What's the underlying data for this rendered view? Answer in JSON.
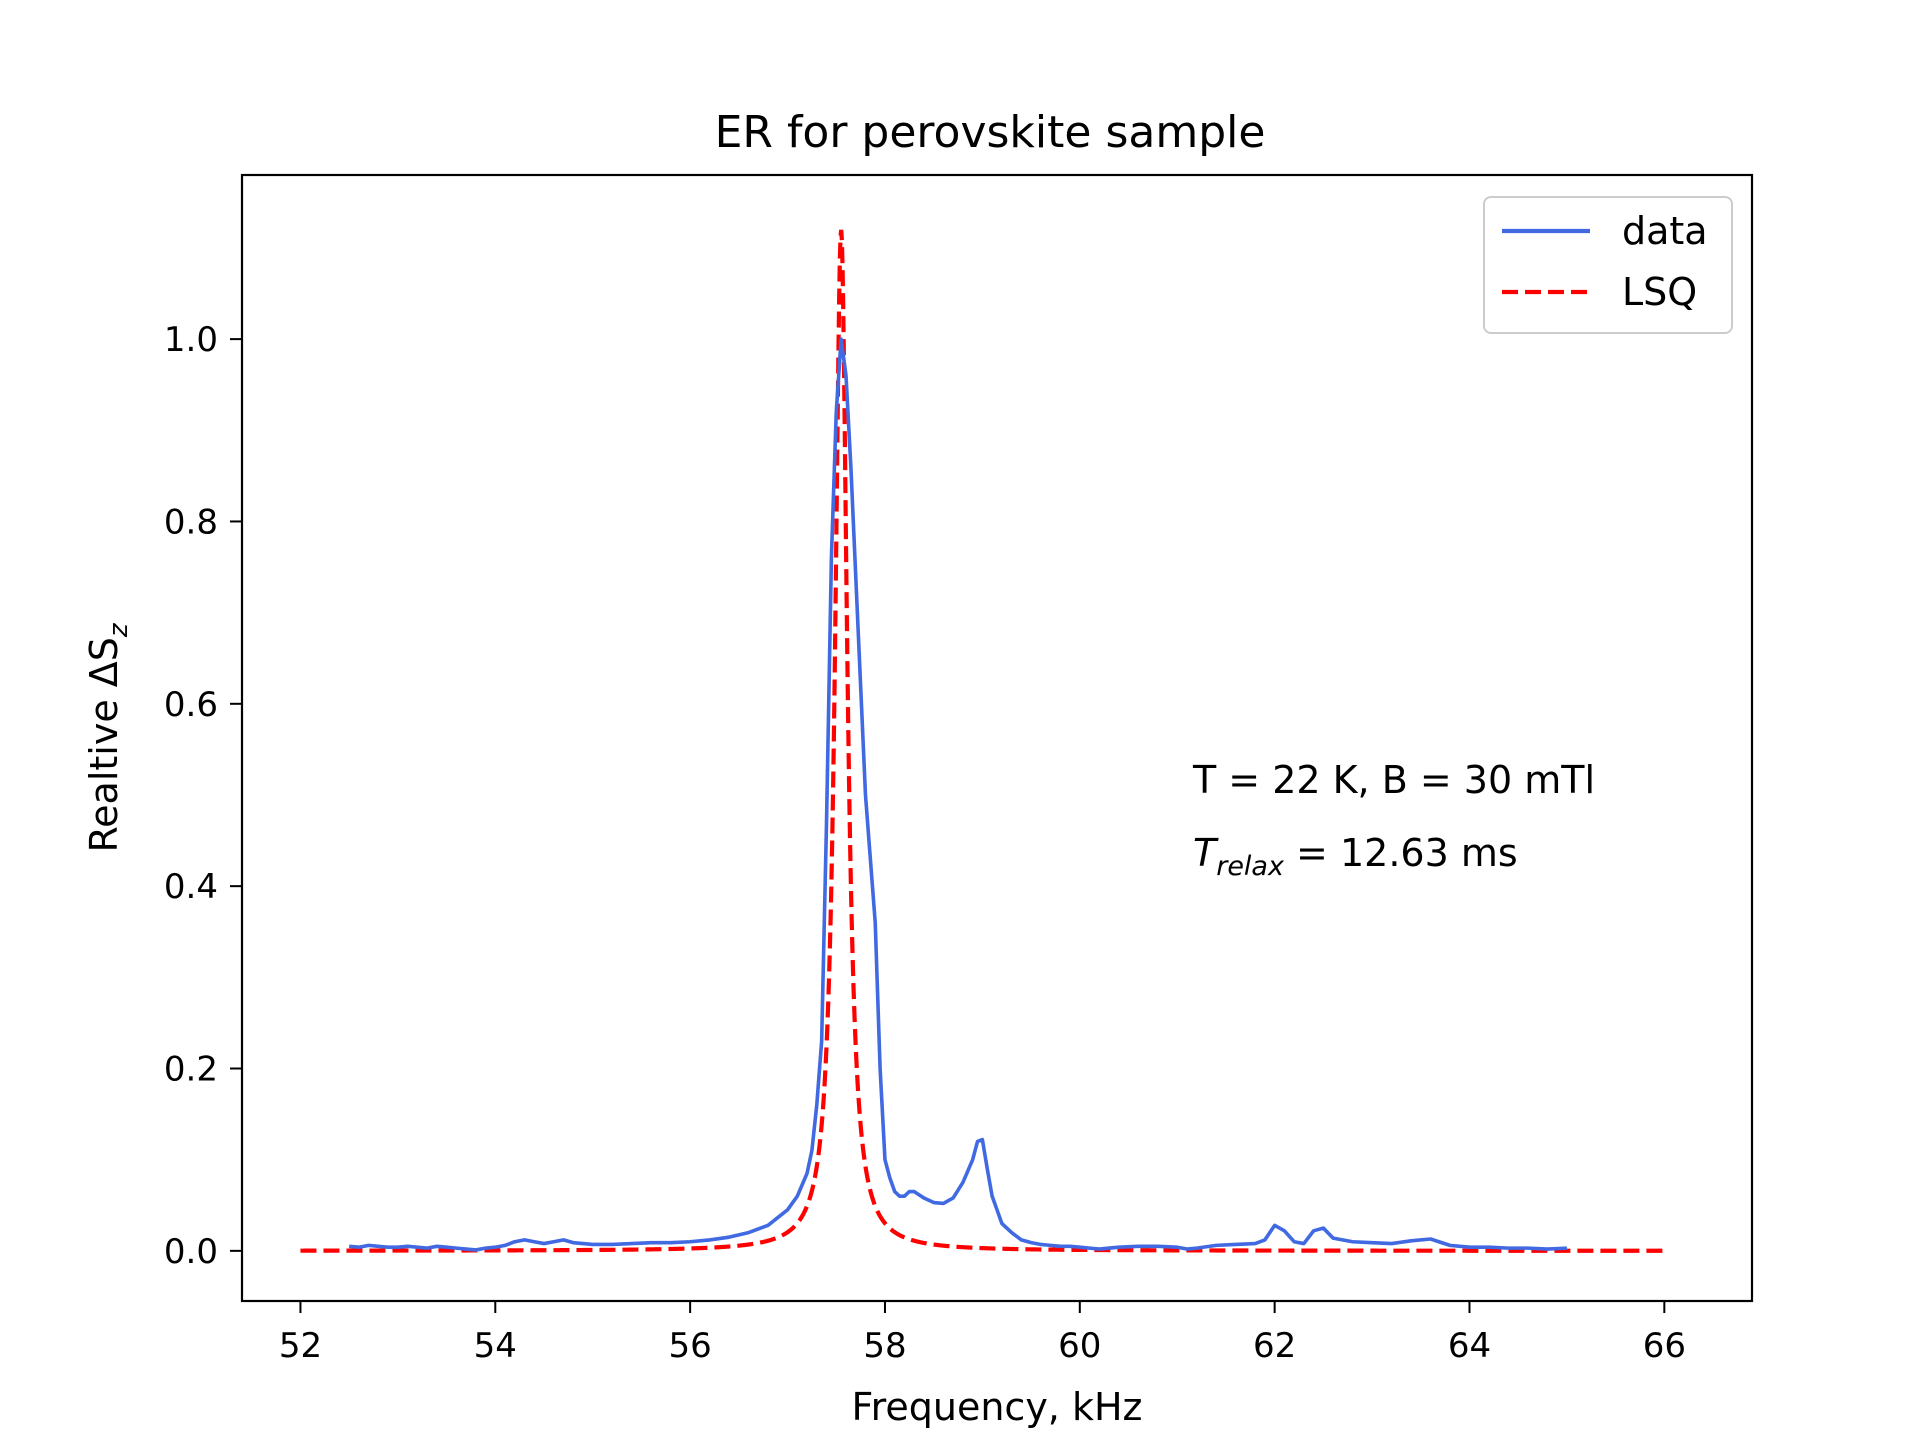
{
  "chart_data": {
    "type": "line",
    "title": "ER for perovskite sample",
    "xlabel": "Frequency, kHz",
    "ylabel": {
      "prefix": "Realtive ΔS",
      "subscript": "z"
    },
    "xlim": [
      51.4,
      66.9
    ],
    "ylim": [
      -0.055,
      1.18
    ],
    "xticks": [
      52,
      54,
      56,
      58,
      60,
      62,
      64,
      66
    ],
    "yticks": [
      0.0,
      0.2,
      0.4,
      0.6,
      0.8,
      1.0
    ],
    "ytick_labels": [
      "0.0",
      "0.2",
      "0.4",
      "0.6",
      "0.8",
      "1.0"
    ],
    "grid": false,
    "legend_position": "top-right",
    "annotations": {
      "line1": "T = 22 K, B = 30 mTl",
      "line2_main": "T",
      "line2_sub": "relax",
      "line2_rest": " = 12.63 ms"
    },
    "series": [
      {
        "name": "data",
        "color": "#4169e1",
        "style": "solid",
        "x": [
          52.5,
          52.6,
          52.7,
          52.8,
          52.9,
          53.0,
          53.1,
          53.2,
          53.3,
          53.4,
          53.5,
          53.6,
          53.7,
          53.8,
          53.9,
          54.0,
          54.1,
          54.2,
          54.3,
          54.4,
          54.5,
          54.6,
          54.7,
          54.8,
          54.9,
          55.0,
          55.2,
          55.4,
          55.6,
          55.8,
          56.0,
          56.2,
          56.4,
          56.6,
          56.8,
          57.0,
          57.1,
          57.2,
          57.25,
          57.3,
          57.35,
          57.4,
          57.45,
          57.5,
          57.55,
          57.6,
          57.65,
          57.7,
          57.75,
          57.8,
          57.85,
          57.9,
          57.95,
          58.0,
          58.05,
          58.1,
          58.15,
          58.2,
          58.25,
          58.3,
          58.4,
          58.5,
          58.6,
          58.7,
          58.8,
          58.9,
          58.95,
          59.0,
          59.05,
          59.1,
          59.15,
          59.2,
          59.3,
          59.4,
          59.5,
          59.6,
          59.7,
          59.8,
          59.9,
          60.0,
          60.1,
          60.2,
          60.4,
          60.6,
          60.8,
          61.0,
          61.1,
          61.2,
          61.4,
          61.6,
          61.8,
          61.9,
          62.0,
          62.1,
          62.2,
          62.3,
          62.4,
          62.5,
          62.6,
          62.8,
          63.0,
          63.2,
          63.4,
          63.6,
          63.8,
          64.0,
          64.2,
          64.4,
          64.6,
          64.8,
          65.0
        ],
        "y": [
          0.005,
          0.004,
          0.006,
          0.005,
          0.004,
          0.004,
          0.005,
          0.004,
          0.003,
          0.005,
          0.004,
          0.003,
          0.002,
          0.001,
          0.003,
          0.004,
          0.006,
          0.01,
          0.012,
          0.01,
          0.008,
          0.01,
          0.012,
          0.009,
          0.008,
          0.007,
          0.007,
          0.008,
          0.009,
          0.009,
          0.01,
          0.012,
          0.015,
          0.02,
          0.028,
          0.045,
          0.06,
          0.085,
          0.11,
          0.16,
          0.23,
          0.47,
          0.76,
          0.92,
          1.0,
          0.96,
          0.86,
          0.74,
          0.62,
          0.5,
          0.43,
          0.36,
          0.2,
          0.1,
          0.08,
          0.065,
          0.06,
          0.06,
          0.065,
          0.065,
          0.058,
          0.053,
          0.052,
          0.058,
          0.075,
          0.1,
          0.12,
          0.122,
          0.09,
          0.06,
          0.045,
          0.03,
          0.02,
          0.012,
          0.009,
          0.007,
          0.006,
          0.005,
          0.005,
          0.004,
          0.003,
          0.002,
          0.004,
          0.005,
          0.005,
          0.004,
          0.002,
          0.003,
          0.006,
          0.007,
          0.008,
          0.012,
          0.028,
          0.022,
          0.01,
          0.008,
          0.022,
          0.025,
          0.014,
          0.01,
          0.009,
          0.008,
          0.011,
          0.013,
          0.006,
          0.004,
          0.004,
          0.003,
          0.003,
          0.002,
          0.003
        ]
      },
      {
        "name": "LSQ",
        "color": "#ff0000",
        "style": "dashed",
        "lorentzian": {
          "center": 57.55,
          "half_width": 0.075,
          "amplitude": 1.12
        },
        "x_range": [
          52.0,
          66.0
        ]
      }
    ]
  }
}
